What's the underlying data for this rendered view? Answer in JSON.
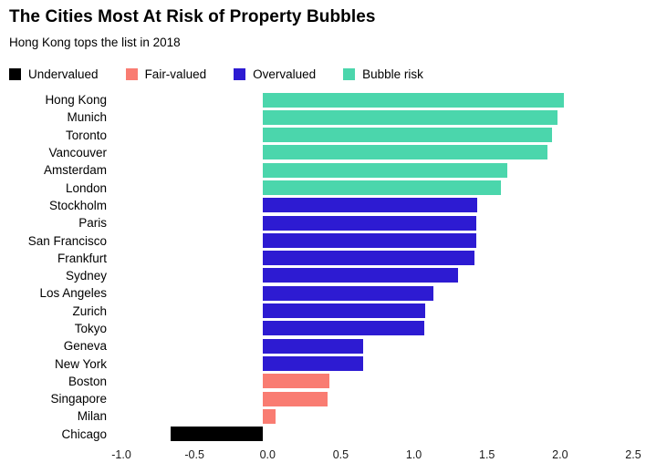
{
  "title": "The Cities Most At Risk of Property Bubbles",
  "subtitle": "Hong Kong tops the list in 2018",
  "legend": [
    {
      "label": "Undervalued",
      "color": "#000000"
    },
    {
      "label": "Fair-valued",
      "color": "#f97c72"
    },
    {
      "label": "Overvalued",
      "color": "#2d1bd2"
    },
    {
      "label": "Bubble risk",
      "color": "#4bd6ac"
    }
  ],
  "chart_data": {
    "type": "bar",
    "orientation": "horizontal",
    "title": "The Cities Most At Risk of Property Bubbles",
    "subtitle": "Hong Kong tops the list in 2018",
    "xlabel": "",
    "ylabel": "",
    "xlim": [
      -1.0,
      2.5
    ],
    "x_ticks": [
      "-1.0",
      "-0.5",
      "0.0",
      "0.5",
      "1.0",
      "1.5",
      "2.0",
      "2.5"
    ],
    "grid": false,
    "legend_position": "top",
    "points": [
      {
        "city": "Hong Kong",
        "value": 2.03,
        "category": "Bubble risk"
      },
      {
        "city": "Munich",
        "value": 1.99,
        "category": "Bubble risk"
      },
      {
        "city": "Toronto",
        "value": 1.95,
        "category": "Bubble risk"
      },
      {
        "city": "Vancouver",
        "value": 1.92,
        "category": "Bubble risk"
      },
      {
        "city": "Amsterdam",
        "value": 1.65,
        "category": "Bubble risk"
      },
      {
        "city": "London",
        "value": 1.61,
        "category": "Bubble risk"
      },
      {
        "city": "Stockholm",
        "value": 1.45,
        "category": "Overvalued"
      },
      {
        "city": "Paris",
        "value": 1.44,
        "category": "Overvalued"
      },
      {
        "city": "San Francisco",
        "value": 1.44,
        "category": "Overvalued"
      },
      {
        "city": "Frankfurt",
        "value": 1.43,
        "category": "Overvalued"
      },
      {
        "city": "Sydney",
        "value": 1.32,
        "category": "Overvalued"
      },
      {
        "city": "Los Angeles",
        "value": 1.15,
        "category": "Overvalued"
      },
      {
        "city": "Zurich",
        "value": 1.1,
        "category": "Overvalued"
      },
      {
        "city": "Tokyo",
        "value": 1.09,
        "category": "Overvalued"
      },
      {
        "city": "Geneva",
        "value": 0.68,
        "category": "Overvalued"
      },
      {
        "city": "New York",
        "value": 0.68,
        "category": "Overvalued"
      },
      {
        "city": "Boston",
        "value": 0.45,
        "category": "Fair-valued"
      },
      {
        "city": "Singapore",
        "value": 0.44,
        "category": "Fair-valued"
      },
      {
        "city": "Milan",
        "value": 0.09,
        "category": "Fair-valued"
      },
      {
        "city": "Chicago",
        "value": -0.62,
        "category": "Undervalued"
      }
    ]
  }
}
